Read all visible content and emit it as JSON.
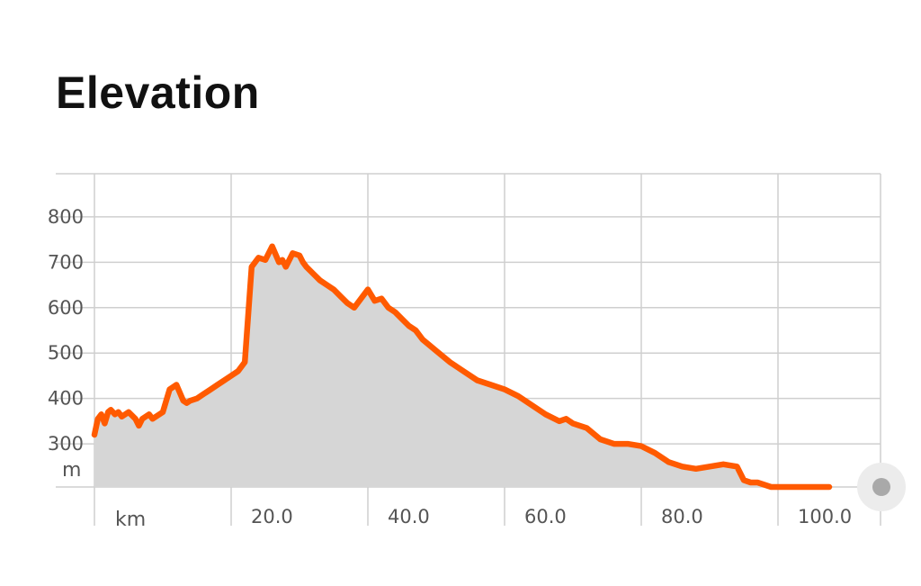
{
  "header": {
    "title": "Elevation"
  },
  "chart_data": {
    "type": "area",
    "title": "Elevation",
    "xlabel": "km",
    "ylabel": "m",
    "xlim": [
      0,
      115
    ],
    "ylim": [
      205,
      895
    ],
    "x_ticks": [
      20.0,
      40.0,
      60.0,
      80.0,
      100.0
    ],
    "x_tick_labels": [
      "20.0",
      "40.0",
      "60.0",
      "80.0",
      "100.0"
    ],
    "y_ticks": [
      300,
      400,
      500,
      600,
      700,
      800
    ],
    "y_tick_labels": [
      "300",
      "400",
      "500",
      "600",
      "700",
      "800"
    ],
    "grid": true,
    "colors": {
      "line": "#ff5a00",
      "fill": "#d6d6d6",
      "grid": "#cfcfcf"
    },
    "series": [
      {
        "x": [
          0,
          0.5,
          1,
          1.5,
          2,
          2.4,
          3,
          3.5,
          4,
          5,
          6,
          6.5,
          7,
          8,
          8.5,
          9,
          9.5,
          10,
          11,
          12,
          13,
          13.5,
          14,
          15,
          16,
          16.5,
          17,
          18,
          19,
          20,
          21,
          22,
          23,
          24,
          25,
          26,
          27,
          27.5,
          28,
          29,
          30,
          30.5,
          31,
          32,
          33,
          34,
          35,
          36,
          37,
          38,
          39,
          40,
          41,
          42,
          43,
          44,
          45,
          46,
          47,
          48,
          50,
          52,
          54,
          56,
          58,
          60,
          62,
          64,
          66,
          68,
          69,
          70,
          72,
          74,
          76,
          78,
          80,
          82,
          84,
          86,
          88,
          90,
          92,
          94,
          95,
          96,
          97,
          98,
          99,
          100,
          101,
          102,
          103,
          104,
          105,
          106,
          107,
          107.5
        ],
        "values": [
          320,
          355,
          365,
          345,
          370,
          375,
          365,
          370,
          360,
          370,
          355,
          340,
          355,
          365,
          355,
          360,
          365,
          370,
          420,
          430,
          395,
          390,
          395,
          400,
          410,
          415,
          420,
          430,
          440,
          450,
          460,
          480,
          690,
          710,
          705,
          735,
          700,
          705,
          690,
          720,
          715,
          700,
          690,
          675,
          660,
          650,
          640,
          625,
          610,
          600,
          620,
          640,
          615,
          620,
          600,
          590,
          575,
          560,
          550,
          530,
          505,
          480,
          460,
          440,
          430,
          420,
          405,
          385,
          365,
          350,
          355,
          345,
          335,
          310,
          300,
          300,
          295,
          280,
          260,
          250,
          245,
          250,
          255,
          250,
          220,
          215,
          215,
          210,
          205,
          205,
          205,
          205,
          205,
          205,
          205,
          205,
          205,
          205
        ]
      }
    ]
  },
  "ui": {
    "scrubber_handle": "scrubber-handle"
  }
}
